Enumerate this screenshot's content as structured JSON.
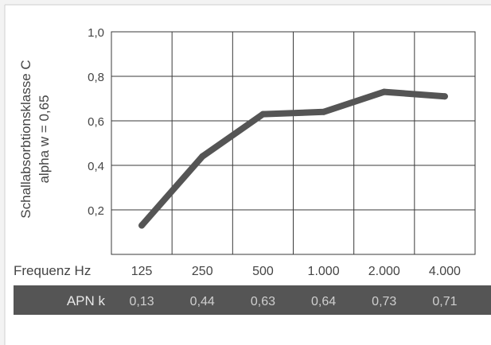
{
  "chart_data": {
    "type": "line",
    "ylabel_line1": "Schallabsorbtionsklasse C",
    "ylabel_line2": "alpha w = 0,65",
    "yticks": [
      "0,2",
      "0,4",
      "0,6",
      "0,8",
      "1,0"
    ],
    "ylim": [
      0,
      1.0
    ],
    "grid": true,
    "x_axis_title": "Frequenz Hz",
    "categories": [
      "125",
      "250",
      "500",
      "1.000",
      "2.000",
      "4.000"
    ],
    "series": [
      {
        "values": [
          0.13,
          0.44,
          0.63,
          0.64,
          0.73,
          0.71
        ]
      }
    ],
    "table": {
      "row_label": "APN k",
      "values": [
        "0,13",
        "0,44",
        "0,63",
        "0,64",
        "0,73",
        "0,71"
      ]
    }
  },
  "colors": {
    "background": "#f3f3f3",
    "plot_background": "#ffffff",
    "line": "#555555",
    "grid": "#3a3a3a",
    "text": "#444444",
    "table_bar": "#555555",
    "table_text": "#cfcfcf",
    "table_label": "#e8e8e8"
  }
}
